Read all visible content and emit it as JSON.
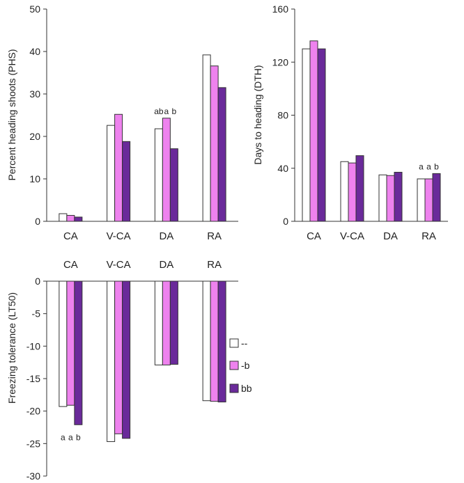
{
  "series_colors": [
    "#ffffff",
    "#ee82ee",
    "#6a2a9a"
  ],
  "legend": [
    {
      "name": "--",
      "color": "#ffffff"
    },
    {
      "name": "-b",
      "color": "#ee82ee"
    },
    {
      "name": "bb",
      "color": "#6a2a9a"
    }
  ],
  "chart_data": [
    {
      "id": "phs",
      "type": "bar",
      "title": "",
      "ylabel": "Percent heading shoots (PHS)",
      "categories": [
        "CA",
        "V-CA",
        "DA",
        "RA"
      ],
      "ylim": [
        0,
        50
      ],
      "yticks": [
        0,
        10,
        20,
        30,
        40,
        50
      ],
      "ytick_labels": [
        "0",
        "10",
        "20",
        "30",
        "40",
        "50"
      ],
      "series": [
        {
          "name": "--",
          "values": [
            1.8,
            22.6,
            21.8,
            39.2
          ]
        },
        {
          "name": "-b",
          "values": [
            1.4,
            25.2,
            24.3,
            36.6
          ]
        },
        {
          "name": "bb",
          "values": [
            1.0,
            18.8,
            17.1,
            31.5
          ]
        }
      ],
      "annotations": [
        {
          "category": "DA",
          "labels": [
            "ab",
            "a",
            "b"
          ]
        }
      ]
    },
    {
      "id": "dth",
      "type": "bar",
      "title": "",
      "ylabel": "Days to heading (DTH)",
      "categories": [
        "CA",
        "V-CA",
        "DA",
        "RA"
      ],
      "ylim": [
        0,
        160
      ],
      "yticks": [
        0,
        40,
        80,
        120,
        160
      ],
      "ytick_labels": [
        "0",
        "40",
        "80",
        "120",
        "160"
      ],
      "series": [
        {
          "name": "--",
          "values": [
            130,
            45,
            35,
            32
          ]
        },
        {
          "name": "-b",
          "values": [
            136,
            44,
            34.5,
            32
          ]
        },
        {
          "name": "bb",
          "values": [
            130,
            49.5,
            37,
            36
          ]
        }
      ],
      "annotations": [
        {
          "category": "RA",
          "labels": [
            "a",
            "a",
            "b"
          ]
        }
      ]
    },
    {
      "id": "lt50",
      "type": "bar",
      "title": "",
      "ylabel": "Freezing tolerance (LT50)",
      "categories": [
        "CA",
        "V-CA",
        "DA",
        "RA"
      ],
      "ylim": [
        -30,
        0
      ],
      "yticks": [
        0,
        -5,
        -10,
        -15,
        -20,
        -25,
        -30
      ],
      "ytick_labels": [
        "0",
        "-5",
        "-10",
        "-15",
        "-20",
        "-25",
        "-30"
      ],
      "series": [
        {
          "name": "--",
          "values": [
            -19.3,
            -24.7,
            -12.9,
            -18.4
          ]
        },
        {
          "name": "-b",
          "values": [
            -19.1,
            -23.5,
            -12.9,
            -18.5
          ]
        },
        {
          "name": "bb",
          "values": [
            -22.1,
            -24.2,
            -12.8,
            -18.6
          ]
        }
      ],
      "annotations": [
        {
          "category": "CA",
          "labels": [
            "a",
            "a",
            "b"
          ]
        }
      ]
    }
  ]
}
